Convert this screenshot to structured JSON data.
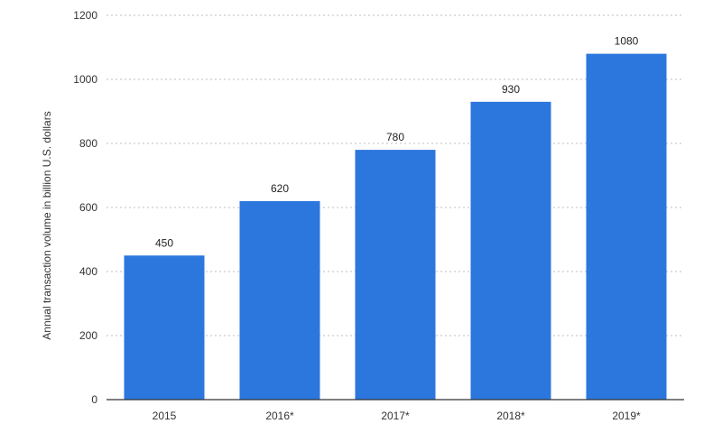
{
  "chart_data": {
    "type": "bar",
    "title": "",
    "xlabel": "",
    "ylabel": "Annual transaction volume in billion U.S. dollars",
    "categories": [
      "2015",
      "2016*",
      "2017*",
      "2018*",
      "2019*"
    ],
    "values": [
      450,
      620,
      780,
      930,
      1080
    ],
    "data_labels": [
      "450",
      "620",
      "780",
      "930",
      "1080"
    ],
    "ylim": [
      0,
      1200
    ],
    "y_ticks": [
      0,
      200,
      400,
      600,
      800,
      1000,
      1200
    ],
    "y_tick_labels": [
      "0",
      "200",
      "400",
      "600",
      "800",
      "1000",
      "1200"
    ],
    "grid": true,
    "legend": "none",
    "bar_color": "#2b77dd"
  }
}
